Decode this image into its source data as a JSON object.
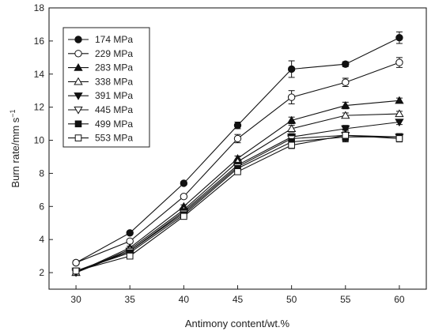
{
  "chart_data": {
    "type": "line",
    "xlabel": "Antimony content/wt.%",
    "ylabel_main": "Burn rate/mm s",
    "ylabel_sup": "−1",
    "xlim": [
      27.5,
      62.5
    ],
    "ylim": [
      1,
      18
    ],
    "xticks": [
      30,
      35,
      40,
      45,
      50,
      55,
      60
    ],
    "yticks": [
      2,
      4,
      6,
      8,
      10,
      12,
      14,
      16,
      18
    ],
    "grid": false,
    "legend_position": "top-left",
    "x": [
      30,
      35,
      40,
      45,
      50,
      55,
      60
    ],
    "series": [
      {
        "name": "174 MPa",
        "marker": "circle-filled",
        "values": [
          2.6,
          4.4,
          7.4,
          10.9,
          14.3,
          14.6,
          16.2
        ],
        "errors": [
          0.1,
          0.1,
          0.1,
          0.2,
          0.5,
          0.15,
          0.35
        ]
      },
      {
        "name": "229 MPa",
        "marker": "circle-open",
        "values": [
          2.6,
          3.9,
          6.6,
          10.1,
          12.6,
          13.5,
          14.7
        ],
        "errors": [
          0.1,
          0.1,
          0.1,
          0.25,
          0.4,
          0.25,
          0.3
        ]
      },
      {
        "name": "283 MPa",
        "marker": "triangle-filled",
        "values": [
          2.0,
          3.5,
          6.0,
          8.9,
          11.2,
          12.1,
          12.4
        ],
        "errors": [
          0.05,
          0.1,
          0.1,
          0.15,
          0.2,
          0.2,
          0.15
        ]
      },
      {
        "name": "338 MPa",
        "marker": "triangle-open",
        "values": [
          2.0,
          3.4,
          5.8,
          8.7,
          10.7,
          11.5,
          11.6
        ],
        "errors": [
          0.05,
          0.1,
          0.1,
          0.15,
          0.2,
          0.15,
          0.15
        ]
      },
      {
        "name": "391 MPa",
        "marker": "triangle-down-filled",
        "values": [
          2.0,
          3.3,
          5.7,
          8.5,
          10.2,
          10.7,
          11.1
        ],
        "errors": [
          0.05,
          0.1,
          0.1,
          0.15,
          0.2,
          0.2,
          0.15
        ]
      },
      {
        "name": "445 MPa",
        "marker": "triangle-down-open",
        "values": [
          2.1,
          3.3,
          5.6,
          8.4,
          10.1,
          10.3,
          10.2
        ],
        "errors": [
          0.05,
          0.1,
          0.1,
          0.15,
          0.2,
          0.35,
          0.2
        ]
      },
      {
        "name": "499 MPa",
        "marker": "square-filled",
        "values": [
          2.1,
          3.2,
          5.5,
          8.3,
          9.9,
          10.2,
          10.2
        ],
        "errors": [
          0.05,
          0.1,
          0.1,
          0.15,
          0.2,
          0.3,
          0.2
        ]
      },
      {
        "name": "553 MPa",
        "marker": "square-open",
        "values": [
          2.1,
          3.0,
          5.4,
          8.1,
          9.7,
          10.3,
          10.1
        ],
        "errors": [
          0.05,
          0.1,
          0.1,
          0.15,
          0.2,
          0.3,
          0.2
        ]
      }
    ]
  }
}
